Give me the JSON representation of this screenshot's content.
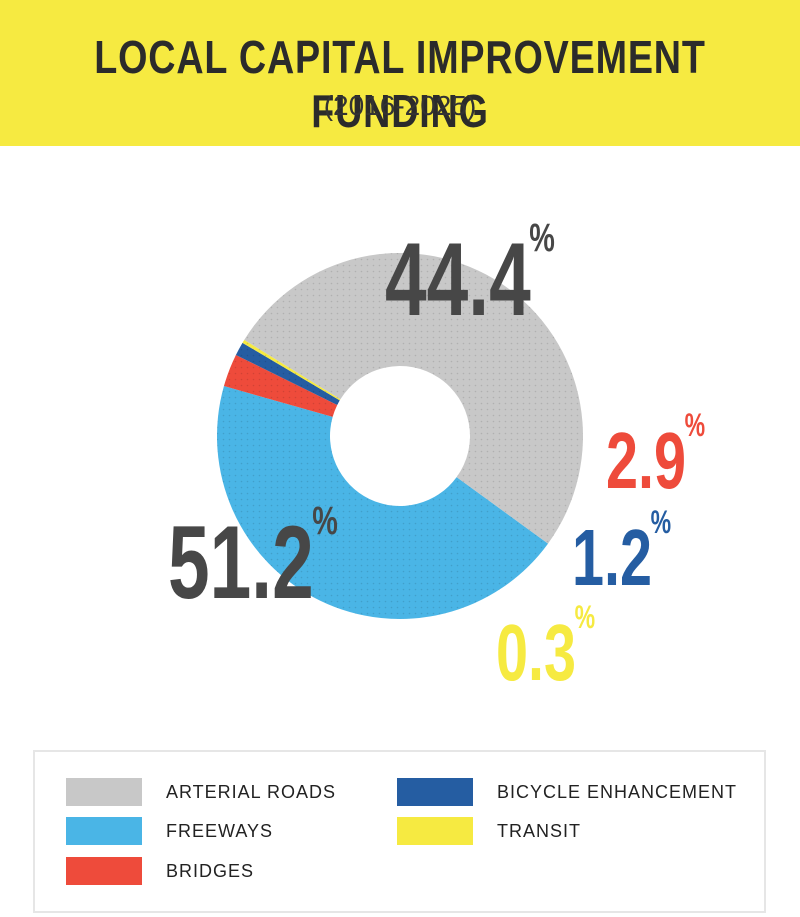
{
  "header": {
    "title": "LOCAL CAPITAL IMPROVEMENT FUNDING",
    "subtitle": "(2016-2025)"
  },
  "chart_data": {
    "type": "pie",
    "donut": true,
    "title": "LOCAL CAPITAL IMPROVEMENT FUNDING",
    "subtitle": "(2016-2025)",
    "series": [
      {
        "name": "FREEWAYS",
        "value": 44.4,
        "display": "44.4",
        "color": "#4ab5e6",
        "text_color": "#474747"
      },
      {
        "name": "BRIDGES",
        "value": 2.9,
        "display": "2.9",
        "color": "#ee4b3b",
        "text_color": "#ee4b3b"
      },
      {
        "name": "BICYCLE ENHANCEMENT",
        "value": 1.2,
        "display": "1.2",
        "color": "#255da2",
        "text_color": "#255da2"
      },
      {
        "name": "TRANSIT",
        "value": 0.3,
        "display": "0.3",
        "color": "#f6ea41",
        "text_color": "#f6ea41"
      },
      {
        "name": "ARTERIAL ROADS",
        "value": 51.2,
        "display": "51.2",
        "color": "#c8c8c8",
        "text_color": "#474747"
      }
    ],
    "unit": "%",
    "legend": [
      {
        "label": "ARTERIAL ROADS",
        "color": "#c8c8c8"
      },
      {
        "label": "FREEWAYS",
        "color": "#4ab5e6"
      },
      {
        "label": "BRIDGES",
        "color": "#ee4b3b"
      },
      {
        "label": "BICYCLE ENHANCEMENT",
        "color": "#255da2"
      },
      {
        "label": "TRANSIT",
        "color": "#f6ea41"
      }
    ],
    "legend_placement": "bottom"
  }
}
